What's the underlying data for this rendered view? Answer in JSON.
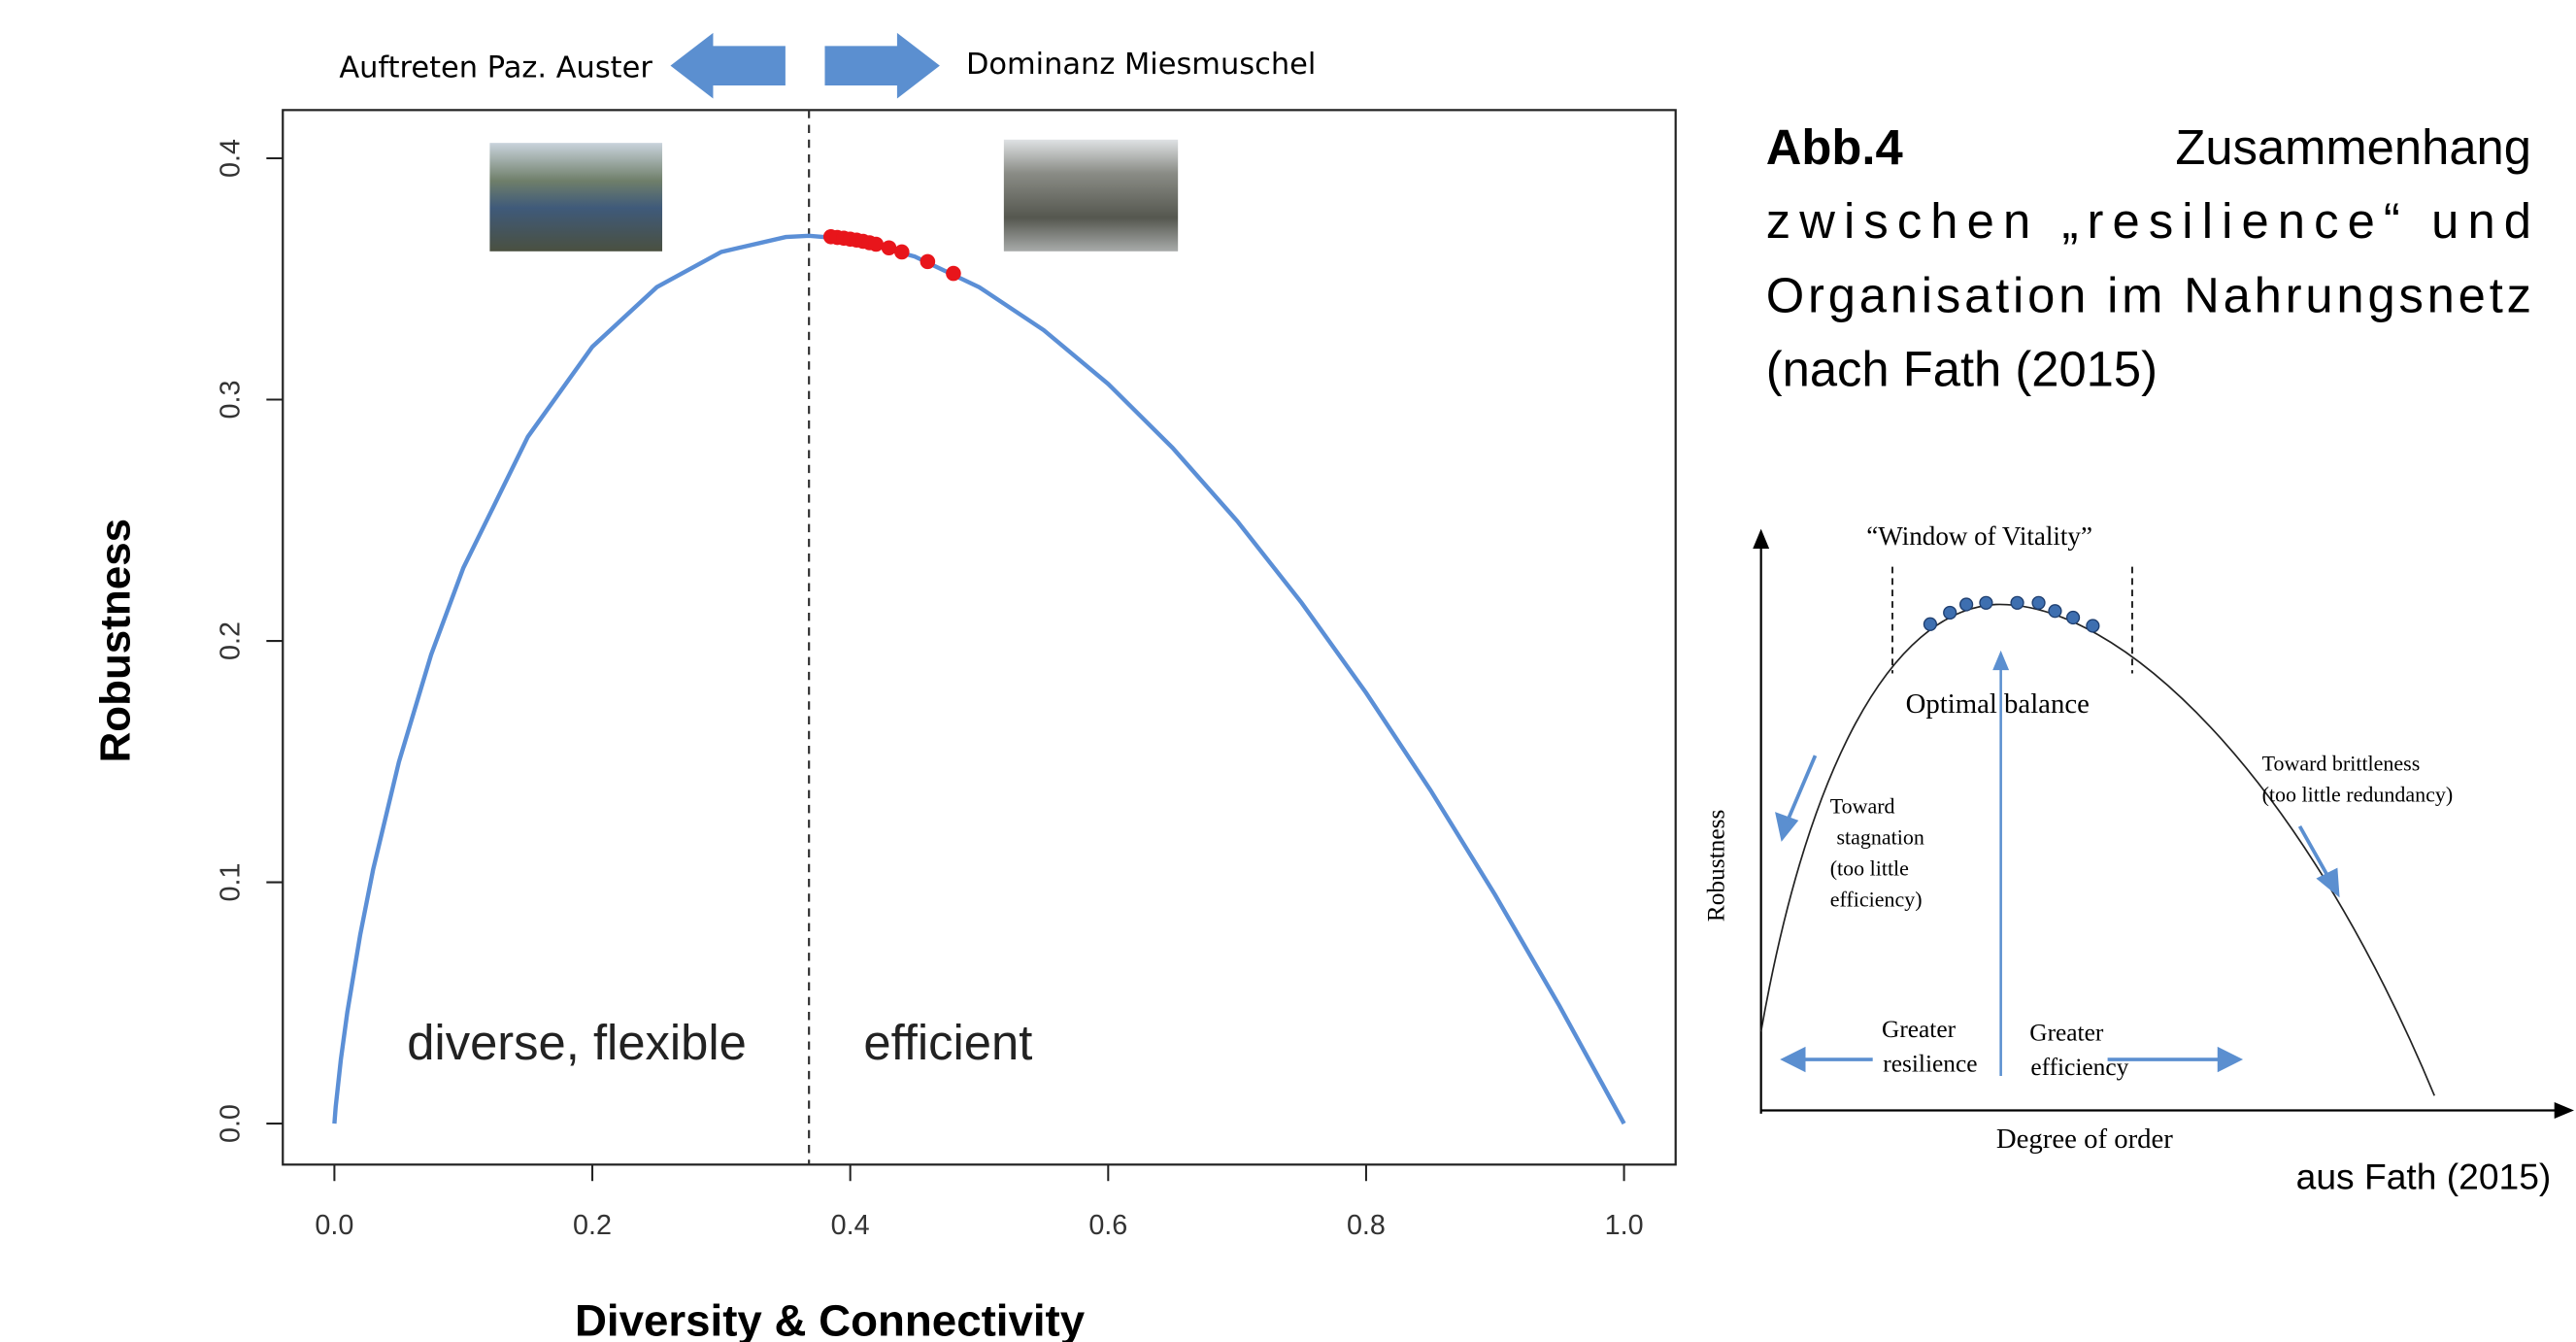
{
  "chart_data": {
    "type": "line",
    "header_left": "Auftreten Paz. Auster",
    "header_right": "Dominanz Miesmuschel",
    "x_label": "Diversity & Connectivity",
    "y_label": "Robustness",
    "region_left": "diverse, flexible",
    "region_right": "efficient",
    "vline": 0.368,
    "xlim": [
      -0.04,
      1.04
    ],
    "ylim": [
      -0.017,
      0.42
    ],
    "xticks": [
      {
        "value": 0,
        "label": "0.0"
      },
      0.2,
      0.4,
      0.6,
      0.8,
      {
        "value": 1,
        "label": "1.0"
      }
    ],
    "yticks": [
      {
        "value": 0,
        "label": "0.0"
      },
      0.1,
      0.2,
      0.3,
      0.4
    ],
    "series": [
      {
        "color": "#5b8fd6",
        "x": [
          0,
          0.001,
          0.005,
          0.01,
          0.02,
          0.03,
          0.05,
          0.075,
          0.1,
          0.15,
          0.2,
          0.25,
          0.3,
          0.35,
          0.368,
          0.4,
          0.45,
          0.5,
          0.55,
          0.6,
          0.65,
          0.7,
          0.75,
          0.8,
          0.85,
          0.9,
          0.95,
          1.0
        ],
        "values": [
          0,
          0.0069,
          0.0265,
          0.0461,
          0.0782,
          0.1052,
          0.1498,
          0.1943,
          0.2303,
          0.2846,
          0.3219,
          0.3466,
          0.3612,
          0.3674,
          0.3679,
          0.3665,
          0.3593,
          0.3466,
          0.3288,
          0.3065,
          0.28,
          0.2497,
          0.2158,
          0.1785,
          0.1381,
          0.0948,
          0.0487,
          0
        ]
      },
      {
        "type": "scatter",
        "color": "#e8151b",
        "x": [
          0.385,
          0.39,
          0.395,
          0.4,
          0.405,
          0.41,
          0.415,
          0.42,
          0.43,
          0.44,
          0.46,
          0.48
        ],
        "values": [
          0.3675,
          0.3672,
          0.3669,
          0.3665,
          0.3661,
          0.3656,
          0.365,
          0.3644,
          0.3629,
          0.3612,
          0.3572,
          0.3523
        ]
      }
    ]
  },
  "caption": {
    "label": "Abb.4",
    "lines": [
      "Zusammenhang",
      "zwischen „resilience“ und",
      "Organisation im Nahrungsnetz",
      "(nach Fath (2015)"
    ]
  },
  "inset": {
    "window": "“Window of Vitality”",
    "optimal": "Optimal balance",
    "stagnation": [
      "Toward",
      "stagnation",
      "(too little",
      "efficiency)"
    ],
    "brittleness": [
      "Toward brittleness",
      "(too little redundancy)"
    ],
    "resilience": [
      "Greater",
      "resilience"
    ],
    "efficiency": [
      "Greater",
      "efficiency"
    ],
    "y_label": "Robustness",
    "x_label": "Degree of order"
  },
  "source": "aus Fath (2015)"
}
